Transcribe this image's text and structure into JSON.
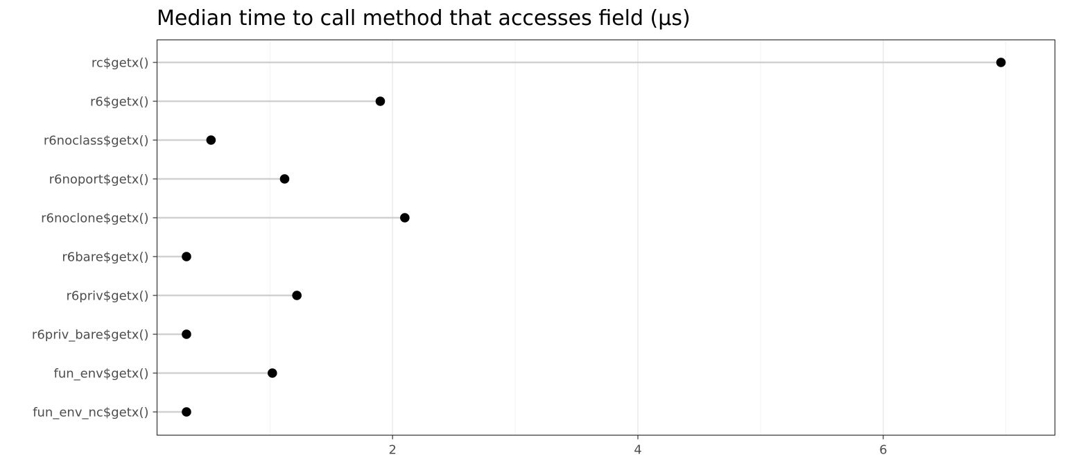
{
  "chart_data": {
    "type": "lollipop",
    "title": "Median time to call method that accesses field (µs)",
    "xlabel": "",
    "ylabel": "",
    "categories": [
      "rc$getx()",
      "r6$getx()",
      "r6noclass$getx()",
      "r6noport$getx()",
      "r6noclone$getx()",
      "r6bare$getx()",
      "r6priv$getx()",
      "r6priv_bare$getx()",
      "fun_env$getx()",
      "fun_env_nc$getx()"
    ],
    "values": [
      6.96,
      1.9,
      0.52,
      1.12,
      2.1,
      0.32,
      1.22,
      0.32,
      1.02,
      0.32
    ],
    "xlim": [
      0.08,
      7.4
    ],
    "xticks": [
      2,
      4,
      6
    ],
    "xtick_labels": [
      "2",
      "4",
      "6"
    ],
    "grid": true,
    "legend": "none",
    "colors": {
      "point": "#000000",
      "stem": "#d0d0d0",
      "grid": "#ebebeb",
      "panel_border": "#333333",
      "tick_label": "#4d4d4d"
    }
  }
}
